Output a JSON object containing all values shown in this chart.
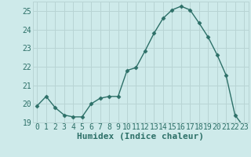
{
  "x": [
    0,
    1,
    2,
    3,
    4,
    5,
    6,
    7,
    8,
    9,
    10,
    11,
    12,
    13,
    14,
    15,
    16,
    17,
    18,
    19,
    20,
    21,
    22,
    23
  ],
  "y": [
    19.9,
    20.4,
    19.8,
    19.4,
    19.3,
    19.3,
    20.0,
    20.3,
    20.4,
    20.4,
    21.8,
    21.95,
    22.85,
    23.8,
    24.6,
    25.05,
    25.25,
    25.05,
    24.35,
    23.6,
    22.65,
    21.55,
    19.4,
    18.75
  ],
  "line_color": "#2d7068",
  "marker": "D",
  "marker_size": 2.5,
  "bg_color": "#ceeaea",
  "grid_color": "#b8d4d4",
  "xlabel": "Humidex (Indice chaleur)",
  "ylim": [
    19,
    25.5
  ],
  "yticks": [
    19,
    20,
    21,
    22,
    23,
    24,
    25
  ],
  "xticks": [
    0,
    1,
    2,
    3,
    4,
    5,
    6,
    7,
    8,
    9,
    10,
    11,
    12,
    13,
    14,
    15,
    16,
    17,
    18,
    19,
    20,
    21,
    22,
    23
  ],
  "tick_color": "#2d7068",
  "label_color": "#2d7068",
  "xlabel_fontsize": 8,
  "tick_fontsize": 7,
  "linewidth": 1.0
}
